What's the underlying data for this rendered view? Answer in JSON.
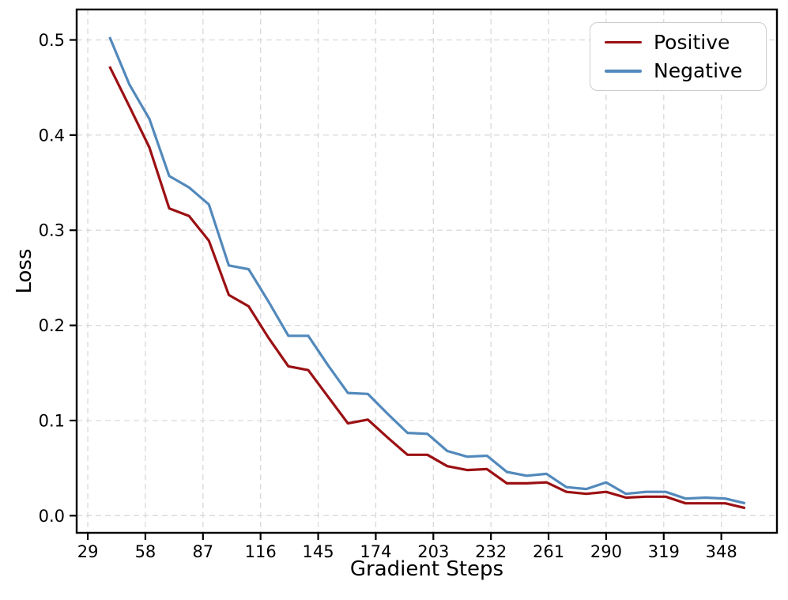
{
  "figure": {
    "background": "#ffffff"
  },
  "chart_data": {
    "type": "line",
    "title": "",
    "xlabel": "Gradient Steps",
    "ylabel": "Loss",
    "grid": true,
    "grid_style": "dashed",
    "grid_color": "#d9d9d9",
    "legend_position": "upper right",
    "xlim": [
      23.4,
      376.0
    ],
    "ylim": [
      -0.018,
      0.532
    ],
    "x_ticks": [
      29,
      58,
      87,
      116,
      145,
      174,
      203,
      232,
      261,
      290,
      319,
      348
    ],
    "y_ticks": [
      "0.0",
      "0.1",
      "0.2",
      "0.3",
      "0.4",
      "0.5"
    ],
    "x": [
      40,
      50,
      60,
      70,
      80,
      90,
      100,
      110,
      120,
      130,
      140,
      150,
      160,
      170,
      180,
      190,
      200,
      210,
      220,
      230,
      240,
      250,
      260,
      270,
      280,
      290,
      300,
      310,
      320,
      330,
      340,
      350,
      360
    ],
    "series": [
      {
        "name": "Positive",
        "color": "#9B1013",
        "values": [
          0.472,
          0.43,
          0.387,
          0.323,
          0.315,
          0.289,
          0.232,
          0.22,
          0.187,
          0.157,
          0.153,
          0.125,
          0.097,
          0.101,
          0.082,
          0.064,
          0.064,
          0.052,
          0.048,
          0.049,
          0.034,
          0.034,
          0.035,
          0.025,
          0.023,
          0.025,
          0.019,
          0.02,
          0.02,
          0.013,
          0.013,
          0.013,
          0.008
        ]
      },
      {
        "name": "Negative",
        "color": "#5289BB",
        "values": [
          0.503,
          0.453,
          0.417,
          0.357,
          0.345,
          0.327,
          0.263,
          0.259,
          0.225,
          0.189,
          0.189,
          0.158,
          0.129,
          0.128,
          0.107,
          0.087,
          0.086,
          0.068,
          0.062,
          0.063,
          0.046,
          0.042,
          0.044,
          0.03,
          0.028,
          0.035,
          0.023,
          0.025,
          0.025,
          0.018,
          0.019,
          0.018,
          0.013
        ]
      }
    ]
  }
}
